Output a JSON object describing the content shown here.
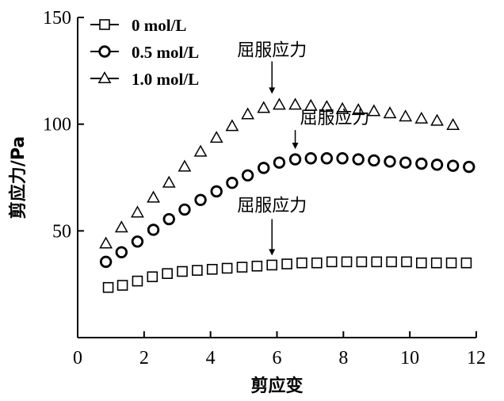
{
  "chart_data": {
    "type": "scatter",
    "xlabel": "剪应变",
    "ylabel": "剪应力/Pa",
    "xlim": [
      0,
      12
    ],
    "ylim": [
      0,
      150
    ],
    "xticks": [
      0,
      2,
      4,
      6,
      8,
      10,
      12
    ],
    "yticks": [
      50,
      100,
      150
    ],
    "series": [
      {
        "name": "0 mol/L",
        "marker": "square",
        "x": [
          0.92,
          1.35,
          1.8,
          2.25,
          2.7,
          3.15,
          3.6,
          4.05,
          4.5,
          4.95,
          5.4,
          5.85,
          6.3,
          6.75,
          7.2,
          7.65,
          8.1,
          8.55,
          9.0,
          9.45,
          9.9,
          10.35,
          10.8,
          11.25,
          11.7
        ],
        "values": [
          23.5,
          24.5,
          26.5,
          28.5,
          30,
          31,
          31.5,
          32,
          32.5,
          33,
          33.5,
          34,
          34.5,
          35,
          35,
          35.5,
          35.5,
          35.5,
          35.5,
          35.5,
          35.5,
          35,
          35,
          35,
          35
        ]
      },
      {
        "name": "0.5 mol/L",
        "marker": "circle",
        "x": [
          0.85,
          1.32,
          1.8,
          2.28,
          2.75,
          3.22,
          3.7,
          4.18,
          4.65,
          5.12,
          5.6,
          6.07,
          6.55,
          7.02,
          7.5,
          7.97,
          8.45,
          8.92,
          9.4,
          9.87,
          10.35,
          10.82,
          11.3,
          11.78
        ],
        "values": [
          35.5,
          40,
          45,
          50.5,
          55.5,
          60,
          64.5,
          68.5,
          72.5,
          76,
          79.5,
          82,
          83.5,
          84,
          84,
          84,
          83.5,
          83,
          82.5,
          82,
          81.5,
          81,
          80.5,
          80
        ]
      },
      {
        "name": "1.0 mol/L",
        "marker": "triangle",
        "x": [
          0.85,
          1.32,
          1.8,
          2.28,
          2.75,
          3.22,
          3.7,
          4.18,
          4.65,
          5.12,
          5.6,
          6.07,
          6.55,
          7.02,
          7.5,
          7.97,
          8.45,
          8.92,
          9.4,
          9.87,
          10.35,
          10.82,
          11.3
        ],
        "values": [
          44,
          51.5,
          58.5,
          65.5,
          72.5,
          80,
          87,
          93.5,
          99,
          104.5,
          107.5,
          109,
          109,
          108.5,
          108,
          107,
          106.5,
          106,
          105,
          103.5,
          102.5,
          101.5,
          99.5
        ]
      }
    ],
    "annotations": [
      {
        "text": "屈服应力",
        "x": 5.85,
        "y": 34
      },
      {
        "text": "屈服应力",
        "x": 6.55,
        "y": 83.5
      },
      {
        "text": "屈服应力",
        "x": 5.85,
        "y": 109
      }
    ],
    "legend_position": "top-left"
  }
}
